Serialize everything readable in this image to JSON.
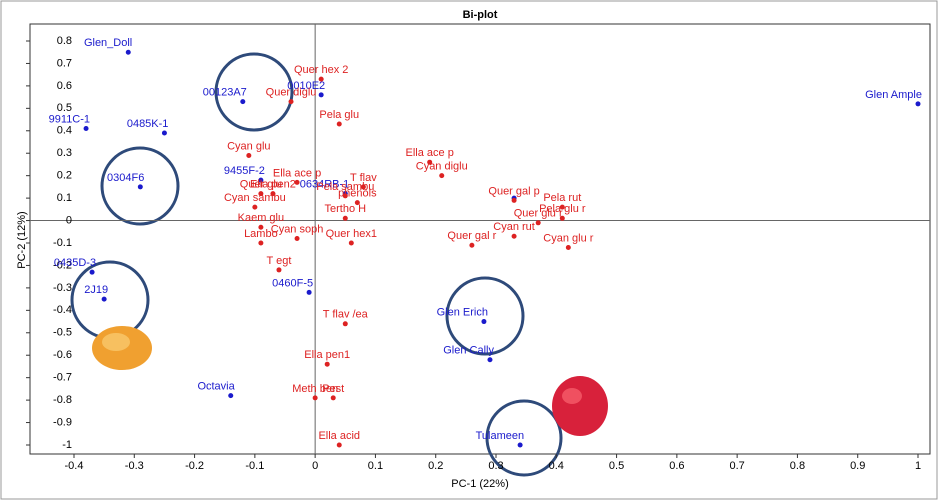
{
  "chart_data": {
    "type": "scatter",
    "title": "Bi-plot",
    "x_label": "PC-1 (22%)",
    "y_label": "PC-2 (12%)",
    "xlim": [
      -0.4,
      1
    ],
    "ylim": [
      -1,
      0.8
    ],
    "xticks": [
      -0.4,
      -0.3,
      -0.2,
      -0.1,
      0,
      0.1,
      0.2,
      0.3,
      0.4,
      0.5,
      0.6,
      0.7,
      0.8,
      0.9,
      1
    ],
    "yticks": [
      -1,
      -0.9,
      -0.8,
      -0.7,
      -0.6,
      -0.5,
      -0.4,
      -0.3,
      -0.2,
      -0.1,
      0,
      0.1,
      0.2,
      0.3,
      0.4,
      0.5,
      0.6,
      0.7,
      0.8
    ],
    "series": [
      {
        "color": "#1a1acc",
        "x": [
          -0.31,
          -0.12,
          0.01,
          1.0,
          -0.38,
          -0.25,
          -0.29,
          -0.09,
          0.05,
          0.33,
          -0.37,
          -0.35,
          -0.01,
          0.28,
          0.29,
          -0.14,
          0.34
        ],
        "y": [
          0.75,
          0.53,
          0.56,
          0.52,
          0.41,
          0.39,
          0.15,
          0.18,
          0.12,
          0.1,
          -0.23,
          -0.35,
          -0.32,
          -0.45,
          -0.62,
          -0.78,
          -1.0
        ],
        "labels": [
          "Glen_Doll",
          "00123A7",
          "0010E2",
          "Glen Ample",
          "9911C-1",
          "0485K-1",
          "0304F6",
          "9455F-2",
          "0634RB-1",
          null,
          "0435D-3",
          "2J19",
          "0460F-5",
          "Glen Erich",
          "Glen Cally",
          "Octavia",
          "Tulameen"
        ]
      },
      {
        "color": "#dd2222",
        "x": [
          0.01,
          -0.04,
          0.04,
          0.19,
          0.21,
          -0.11,
          -0.03,
          0.08,
          0.05,
          0.07,
          -0.09,
          -0.07,
          -0.1,
          -0.09,
          -0.03,
          -0.09,
          0.05,
          0.06,
          0.26,
          0.33,
          0.41,
          0.41,
          0.37,
          0.33,
          0.42,
          -0.06,
          0.05,
          0.02,
          0.0,
          0.03,
          0.04
        ],
        "y": [
          0.63,
          0.53,
          0.43,
          0.26,
          0.2,
          0.29,
          0.17,
          0.15,
          0.11,
          0.08,
          0.12,
          0.12,
          0.06,
          -0.03,
          -0.08,
          -0.1,
          0.01,
          -0.1,
          -0.11,
          0.09,
          0.06,
          0.01,
          -0.01,
          -0.07,
          -0.12,
          -0.22,
          -0.46,
          -0.64,
          -0.79,
          -0.79,
          -1.0
        ],
        "labels": [
          "Quer hex 2",
          "Quer diglu",
          "Pela glu",
          "Ella ace p",
          "Cyan diglu",
          "Cyan glu",
          "Ella ace p",
          "T flav",
          "Pela sambu",
          "phenols",
          "Quer glu",
          "Ella pen2",
          "Cyan sambu",
          "Kaem glu",
          "Cyan soph",
          "Lambo",
          "Tertho H",
          "Quer hex1",
          "Quer gal r",
          "Quer gal p",
          "Pela rut",
          "Pela glu r",
          "Quer glu r",
          "Cyan rut",
          "Cyan glu r",
          "T egt",
          "T flav /ea",
          "Ella pen1",
          "Meth ben",
          "Pest",
          "Ella acid"
        ]
      }
    ]
  }
}
